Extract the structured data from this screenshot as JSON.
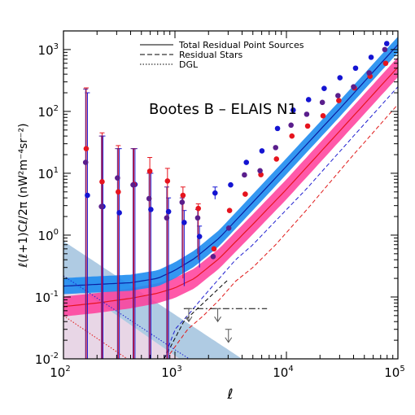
{
  "chart_data": {
    "type": "scatter",
    "title": "Bootes B – ELAIS N1",
    "xlabel": "ℓ",
    "ylabel": "ℓ(ℓ+1)Cℓ/2π   (nW²m⁻⁴sr⁻²)",
    "x_scale": "log",
    "y_scale": "log",
    "xlim": [
      100,
      100000
    ],
    "ylim": [
      0.01,
      2000
    ],
    "x_ticks": [
      {
        "base": "10",
        "exp": "2"
      },
      {
        "base": "10",
        "exp": "3"
      },
      {
        "base": "10",
        "exp": "4"
      },
      {
        "base": "10",
        "exp": "5"
      }
    ],
    "y_ticks": [
      {
        "base": "10",
        "exp": "-2"
      },
      {
        "base": "10",
        "exp": "-1"
      },
      {
        "base": "10",
        "exp": "0"
      },
      {
        "base": "10",
        "exp": "1"
      },
      {
        "base": "10",
        "exp": "2"
      },
      {
        "base": "10",
        "exp": "3"
      }
    ],
    "legend": {
      "position": "top-center",
      "entries": [
        {
          "label": "Total Residual Point Sources",
          "style": "solid"
        },
        {
          "label": "Residual Stars",
          "style": "dashed"
        },
        {
          "label": "DGL",
          "style": "dotted"
        }
      ]
    },
    "colors": {
      "bootes_points": "#1414d2",
      "elais_points": "#e6141e",
      "combined_points": "#5a1e8c",
      "bootes_band": "#1e8cf0",
      "bootes_line": "#0a1ea0",
      "elais_band": "#ff3c9a",
      "elais_line": "#e6141e",
      "dgl_band": "#7aa8d0",
      "dgl_band_low": "#e2cce0"
    },
    "series": [
      {
        "color": "#1414d2",
        "points": [
          {
            "x": 164,
            "y": 4.4,
            "err": [
              0.01,
              200
            ]
          },
          {
            "x": 226,
            "y": 2.9,
            "err": [
              0.01,
              40
            ]
          },
          {
            "x": 317,
            "y": 2.3,
            "err": [
              0.01,
              25
            ]
          },
          {
            "x": 438,
            "y": 6.6,
            "err": [
              0.01,
              25
            ]
          },
          {
            "x": 608,
            "y": 2.6,
            "err": [
              0.01,
              10
            ]
          },
          {
            "x": 876,
            "y": 2.4,
            "err": [
              0.01,
              4
            ]
          },
          {
            "x": 1210,
            "y": 1.6,
            "err": [
              0.15,
              2.5
            ]
          },
          {
            "x": 1660,
            "y": 0.95,
            "err": [
              0.3,
              1.4
            ]
          },
          {
            "x": 2290,
            "y": 4.8,
            "err": [
              3.8,
              6.0
            ]
          },
          {
            "x": 3160,
            "y": 6.5
          },
          {
            "x": 4370,
            "y": 15
          },
          {
            "x": 6030,
            "y": 23
          },
          {
            "x": 8320,
            "y": 53
          },
          {
            "x": 11500,
            "y": 105
          },
          {
            "x": 15800,
            "y": 155
          },
          {
            "x": 21800,
            "y": 235
          },
          {
            "x": 30200,
            "y": 350
          },
          {
            "x": 41700,
            "y": 500
          },
          {
            "x": 57500,
            "y": 750
          },
          {
            "x": 79400,
            "y": 1250
          }
        ]
      },
      {
        "color": "#e6141e",
        "points": [
          {
            "x": 160,
            "y": 25,
            "err": [
              0.01,
              240
            ]
          },
          {
            "x": 222,
            "y": 7.3,
            "err": [
              0.01,
              45
            ]
          },
          {
            "x": 310,
            "y": 5.0,
            "err": [
              0.01,
              28
            ]
          },
          {
            "x": 428,
            "y": 6.6,
            "err": [
              0.01,
              25
            ]
          },
          {
            "x": 595,
            "y": 10.8,
            "err": [
              0.01,
              18
            ]
          },
          {
            "x": 857,
            "y": 7.5,
            "err": [
              0.01,
              12
            ]
          },
          {
            "x": 1180,
            "y": 4.4,
            "err": [
              0.2,
              6
            ]
          },
          {
            "x": 1620,
            "y": 2.7,
            "err": [
              0.4,
              3.2
            ]
          },
          {
            "x": 2240,
            "y": 0.6
          },
          {
            "x": 3090,
            "y": 2.5
          },
          {
            "x": 4270,
            "y": 4.6
          },
          {
            "x": 5900,
            "y": 9.5
          },
          {
            "x": 8140,
            "y": 17
          },
          {
            "x": 11200,
            "y": 40
          },
          {
            "x": 15500,
            "y": 58
          },
          {
            "x": 21300,
            "y": 85
          },
          {
            "x": 29500,
            "y": 150
          },
          {
            "x": 40700,
            "y": 240
          },
          {
            "x": 56200,
            "y": 370
          },
          {
            "x": 77600,
            "y": 600
          }
        ]
      },
      {
        "color": "#5a1e8c",
        "points": [
          {
            "x": 158,
            "y": 15,
            "err": [
              0.01,
              230
            ]
          },
          {
            "x": 219,
            "y": 2.9,
            "err": [
              0.01,
              40
            ]
          },
          {
            "x": 305,
            "y": 8.4,
            "err": [
              0.01,
              25
            ]
          },
          {
            "x": 421,
            "y": 6.5,
            "err": [
              0.01,
              25
            ]
          },
          {
            "x": 586,
            "y": 3.9,
            "err": [
              0.01,
              10
            ]
          },
          {
            "x": 844,
            "y": 1.9,
            "err": [
              0.01,
              6
            ]
          },
          {
            "x": 1160,
            "y": 3.4,
            "err": [
              0.3,
              4
            ]
          },
          {
            "x": 1600,
            "y": 1.9,
            "err": [
              0.5,
              2.6
            ]
          },
          {
            "x": 2200,
            "y": 0.45
          },
          {
            "x": 3040,
            "y": 1.3
          },
          {
            "x": 4200,
            "y": 9.4
          },
          {
            "x": 5800,
            "y": 11
          },
          {
            "x": 8000,
            "y": 26
          },
          {
            "x": 11000,
            "y": 60
          },
          {
            "x": 15200,
            "y": 90
          },
          {
            "x": 21000,
            "y": 140
          },
          {
            "x": 29000,
            "y": 180
          },
          {
            "x": 40000,
            "y": 250
          },
          {
            "x": 55200,
            "y": 420
          },
          {
            "x": 76300,
            "y": 1000
          }
        ]
      }
    ],
    "models": {
      "bootes_total": {
        "x": [
          100,
          200,
          400,
          700,
          1000,
          1500,
          2500,
          5000,
          10000,
          30000,
          100000
        ],
        "y": [
          0.15,
          0.16,
          0.17,
          0.2,
          0.27,
          0.42,
          0.9,
          3.4,
          13,
          110,
          1200
        ]
      },
      "elais_total": {
        "x": [
          100,
          200,
          400,
          700,
          1000,
          1500,
          2500,
          5000,
          10000,
          30000,
          100000
        ],
        "y": [
          0.07,
          0.08,
          0.095,
          0.115,
          0.14,
          0.2,
          0.42,
          1.5,
          5.5,
          48,
          520
        ]
      },
      "bootes_stars": {
        "x": [
          800,
          1000,
          1300,
          1700,
          2500,
          3500,
          5000,
          8000,
          15000,
          40000,
          100000
        ],
        "y": [
          0.01,
          0.03,
          0.05,
          0.09,
          0.2,
          0.4,
          0.7,
          1.7,
          5.5,
          40,
          250
        ]
      },
      "elais_stars": {
        "x": [
          900,
          1300,
          1800,
          2500,
          3500,
          5000,
          8000,
          15000,
          40000,
          100000
        ],
        "y": [
          0.012,
          0.03,
          0.05,
          0.09,
          0.18,
          0.3,
          0.7,
          2.5,
          20,
          130
        ]
      },
      "black_stars": {
        "x": [
          800,
          1200,
          1800,
          2500,
          3000
        ],
        "y": [
          0.01,
          0.04,
          0.08,
          0.14,
          0.19
        ]
      },
      "bootes_dgl": {
        "x": [
          100,
          1000,
          3000
        ],
        "y": [
          0.22,
          0.014,
          0.004
        ]
      },
      "elais_dgl": {
        "x": [
          100,
          1000,
          3000
        ],
        "y": [
          0.05,
          0.003,
          0.0008
        ]
      },
      "dgl_band_upper": {
        "x": [
          100,
          4000
        ],
        "y": [
          0.8,
          0.01
        ]
      },
      "dgl_band_lower": {
        "x": [
          100,
          1100
        ],
        "y": [
          0.2,
          0.01
        ]
      },
      "upper_limits": {
        "x": [
          1330,
          2420,
          3020
        ],
        "y": [
          0.065,
          0.065,
          0.03
        ]
      },
      "limit_line": {
        "x": [
          1200,
          6700
        ],
        "y": [
          0.065,
          0.065
        ]
      }
    }
  }
}
